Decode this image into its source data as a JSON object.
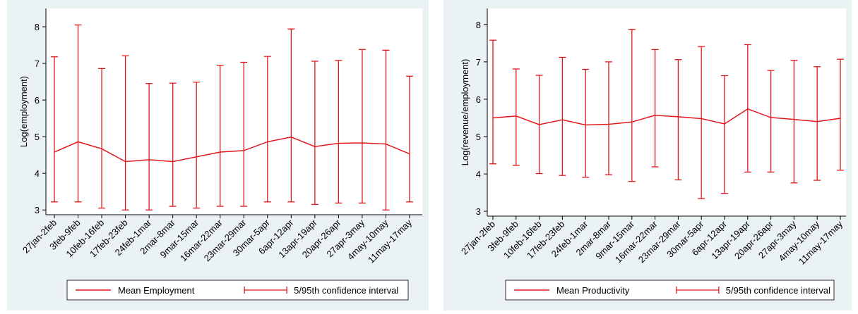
{
  "chart_data": [
    {
      "type": "line",
      "ylabel": "Log(employment)",
      "categories": [
        "27jan-2feb",
        "3feb-9feb",
        "10feb-16feb",
        "17feb-23feb",
        "24feb-1mar",
        "2mar-8mar",
        "9mar-15mar",
        "16mar-22mar",
        "23mar-29mar",
        "30mar-5apr",
        "6apr-12apr",
        "13apr-19apr",
        "20apr-26apr",
        "27apr-3may",
        "4may-10may",
        "11may-17may"
      ],
      "series": [
        {
          "name": "Mean Employment",
          "color": "#e3171b",
          "values": [
            4.58,
            4.86,
            4.67,
            4.32,
            4.37,
            4.32,
            4.45,
            4.58,
            4.62,
            4.86,
            4.99,
            4.73,
            4.82,
            4.83,
            4.8,
            4.53
          ]
        }
      ],
      "error_bars": {
        "name": "5/95th confidence interval",
        "color": "#e3171b",
        "lower": [
          3.22,
          3.22,
          3.05,
          3.0,
          3.0,
          3.1,
          3.05,
          3.1,
          3.1,
          3.22,
          3.22,
          3.15,
          3.19,
          3.19,
          3.0,
          3.22
        ],
        "upper": [
          7.18,
          8.05,
          6.86,
          7.21,
          6.45,
          6.46,
          6.49,
          6.95,
          7.03,
          7.19,
          7.94,
          7.06,
          7.08,
          7.38,
          7.36,
          6.65
        ]
      },
      "ylim": [
        2.87,
        8.5
      ],
      "yticks": [
        3,
        4,
        5,
        6,
        7,
        8
      ]
    },
    {
      "type": "line",
      "ylabel": "Log(revenue/employment)",
      "categories": [
        "27jan-2feb",
        "3feb-9feb",
        "10feb-16feb",
        "17feb-23feb",
        "24feb-1mar",
        "2mar-8mar",
        "9mar-15mar",
        "16mar-22mar",
        "23mar-29mar",
        "30mar-5apr",
        "6apr-12apr",
        "13apr-19apr",
        "20apr-26apr",
        "27apr-3may",
        "4may-10may",
        "11may-17may"
      ],
      "series": [
        {
          "name": "Mean Productivity",
          "color": "#e3171b",
          "values": [
            5.5,
            5.55,
            5.32,
            5.45,
            5.31,
            5.33,
            5.39,
            5.57,
            5.53,
            5.48,
            5.34,
            5.74,
            5.51,
            5.46,
            5.4,
            5.49
          ]
        }
      ],
      "error_bars": {
        "name": "5/95th confidence interval",
        "color": "#e3171b",
        "lower": [
          4.27,
          4.23,
          4.01,
          3.96,
          3.91,
          3.98,
          3.8,
          4.19,
          3.84,
          3.34,
          3.48,
          4.05,
          4.05,
          3.76,
          3.83,
          4.1
        ],
        "upper": [
          7.58,
          6.81,
          6.64,
          7.12,
          6.8,
          7.0,
          7.87,
          7.33,
          7.06,
          7.41,
          6.63,
          7.46,
          6.77,
          7.04,
          6.87,
          7.07
        ]
      },
      "ylim": [
        2.87,
        8.43
      ],
      "yticks": [
        3,
        4,
        5,
        6,
        7,
        8
      ]
    }
  ]
}
